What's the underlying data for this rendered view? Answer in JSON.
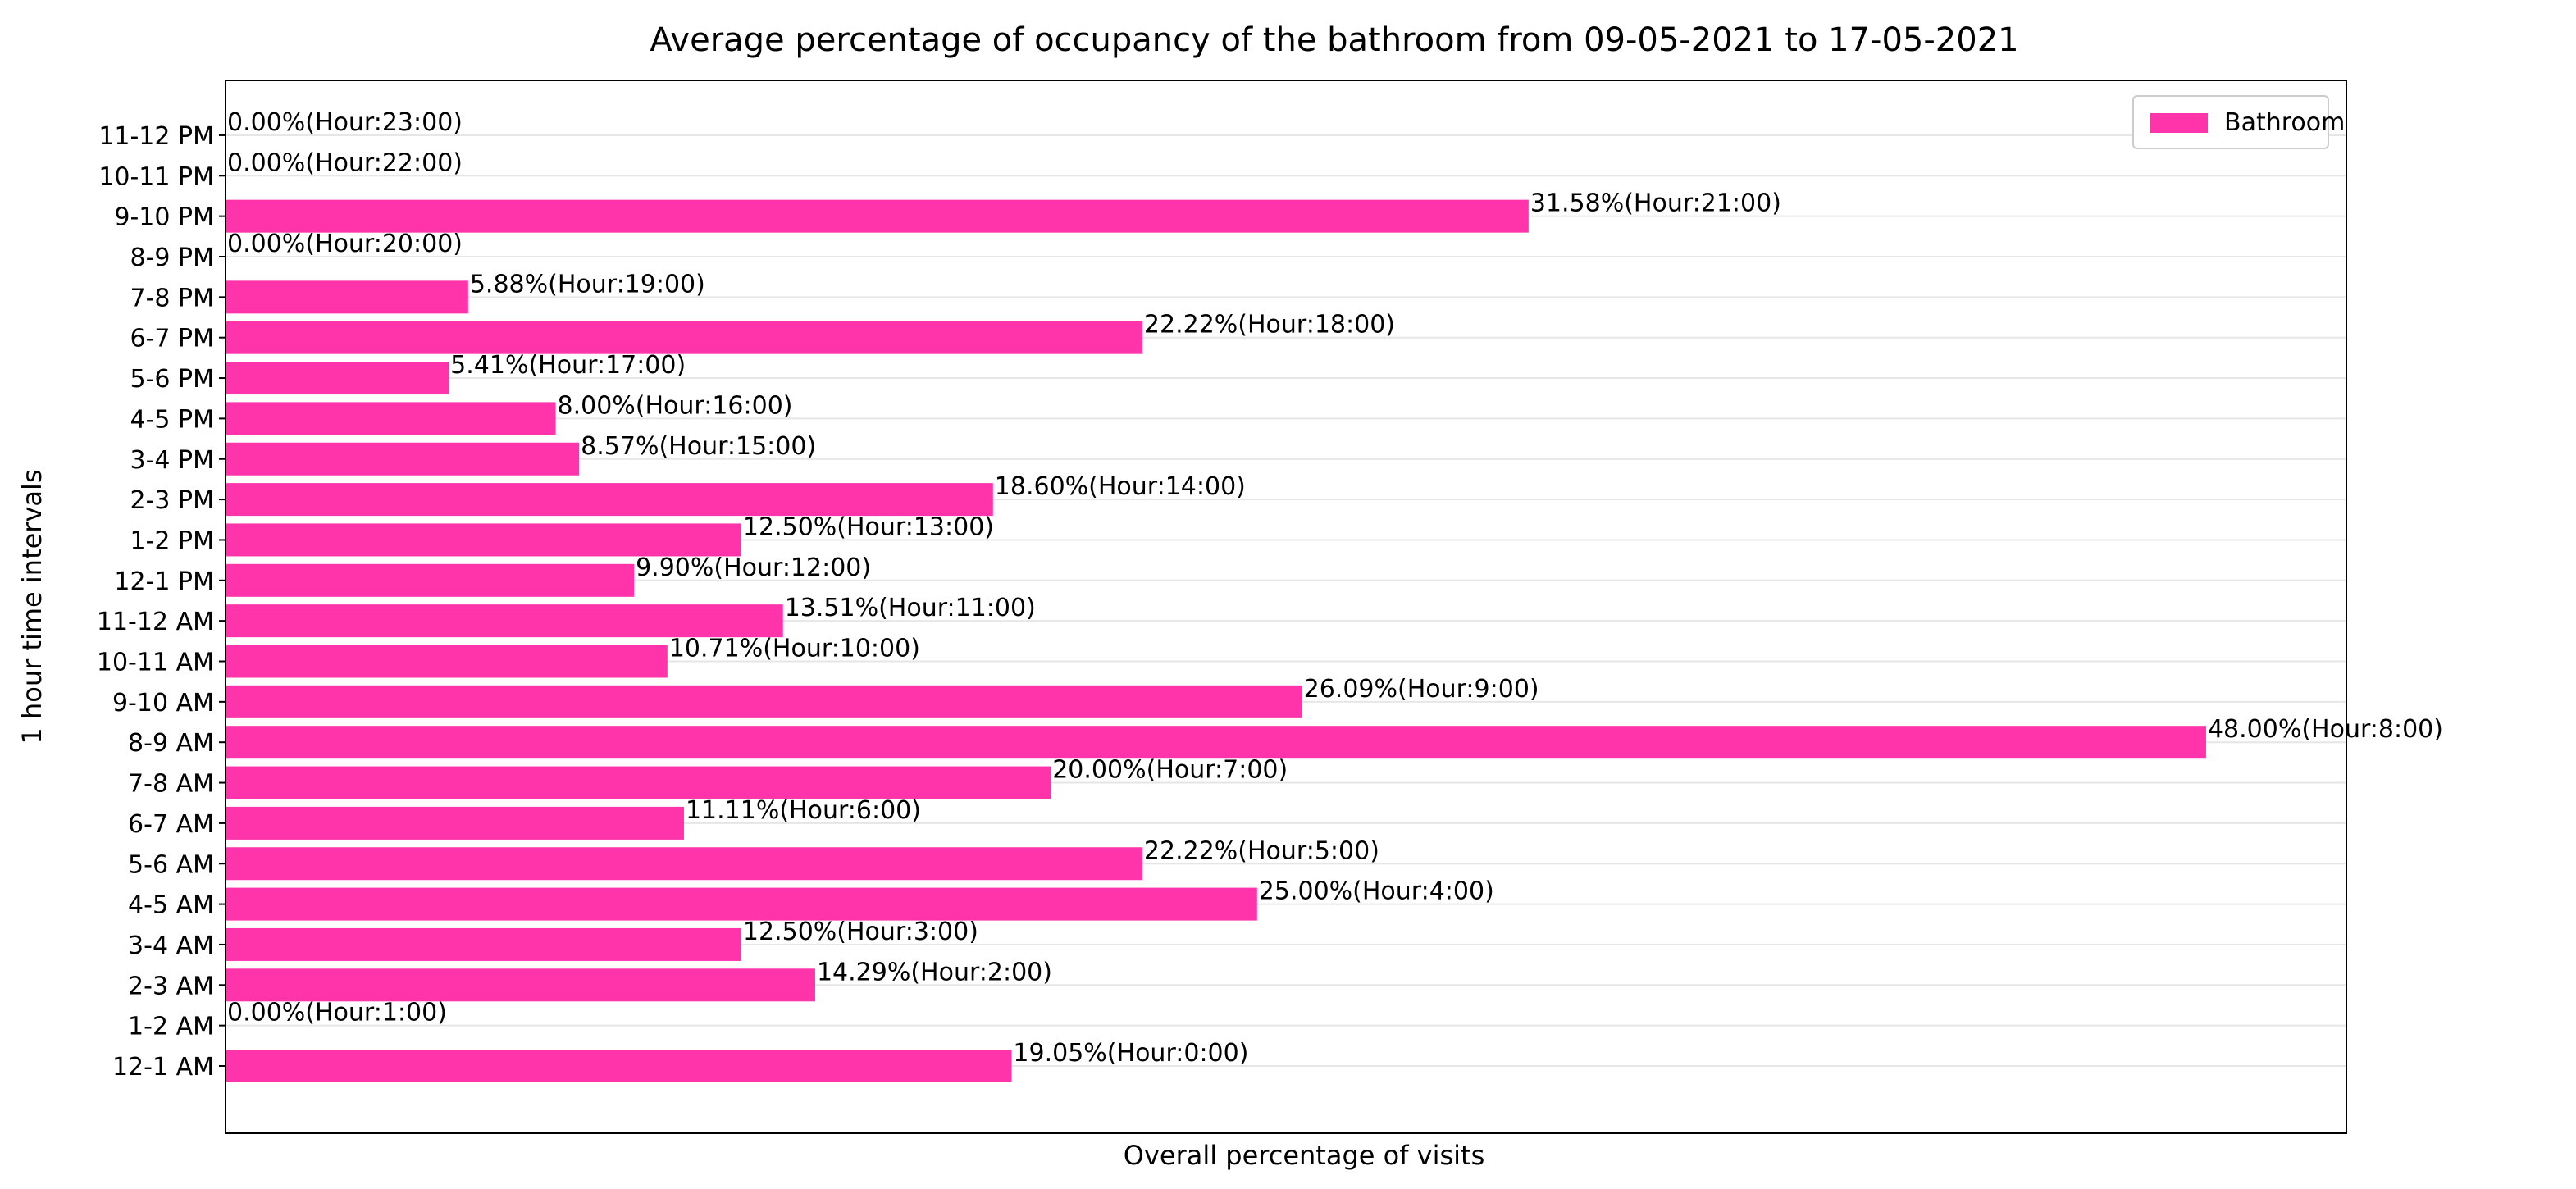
{
  "chart_data": {
    "type": "bar",
    "orientation": "horizontal",
    "title": "Average percentage of occupancy of the bathroom from 09-05-2021 to 17-05-2021",
    "xlabel": "Overall percentage of visits",
    "ylabel": "1 hour time intervals",
    "xlim": [
      0,
      51.4
    ],
    "grid": true,
    "legend_position": "top-right",
    "colors": {
      "bar": "#ff33aa",
      "grid": "#e6e6e6",
      "axis": "#000000"
    },
    "categories": [
      "12-1 AM",
      "1-2 AM",
      "2-3 AM",
      "3-4 AM",
      "4-5 AM",
      "5-6 AM",
      "6-7 AM",
      "7-8 AM",
      "8-9 AM",
      "9-10 AM",
      "10-11 AM",
      "11-12 AM",
      "12-1 PM",
      "1-2 PM",
      "2-3 PM",
      "3-4 PM",
      "4-5 PM",
      "5-6 PM",
      "6-7 PM",
      "7-8 PM",
      "8-9 PM",
      "9-10 PM",
      "10-11 PM",
      "11-12 PM"
    ],
    "series": [
      {
        "name": "Bathroom",
        "values": [
          19.05,
          0.0,
          14.29,
          12.5,
          25.0,
          22.22,
          11.11,
          20.0,
          48.0,
          26.09,
          10.71,
          13.51,
          9.9,
          12.5,
          18.6,
          8.57,
          8.0,
          5.41,
          22.22,
          5.88,
          0.0,
          31.58,
          0.0,
          0.0
        ]
      }
    ],
    "data_labels": [
      "19.05%(Hour:0:00)",
      "0.00%(Hour:1:00)",
      "14.29%(Hour:2:00)",
      "12.50%(Hour:3:00)",
      "25.00%(Hour:4:00)",
      "22.22%(Hour:5:00)",
      "11.11%(Hour:6:00)",
      "20.00%(Hour:7:00)",
      "48.00%(Hour:8:00)",
      "26.09%(Hour:9:00)",
      "10.71%(Hour:10:00)",
      "13.51%(Hour:11:00)",
      "9.90%(Hour:12:00)",
      "12.50%(Hour:13:00)",
      "18.60%(Hour:14:00)",
      "8.57%(Hour:15:00)",
      "8.00%(Hour:16:00)",
      "5.41%(Hour:17:00)",
      "22.22%(Hour:18:00)",
      "5.88%(Hour:19:00)",
      "0.00%(Hour:20:00)",
      "31.58%(Hour:21:00)",
      "0.00%(Hour:22:00)",
      "0.00%(Hour:23:00)"
    ]
  }
}
